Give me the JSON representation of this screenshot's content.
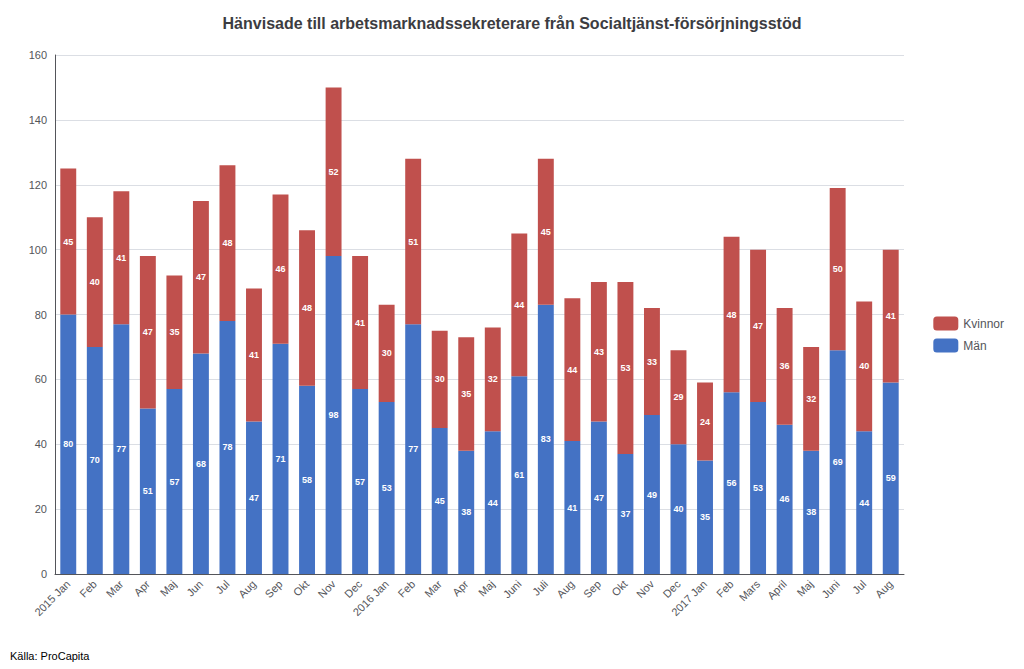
{
  "chart_data": {
    "type": "bar",
    "title": "Hänvisade till arbetsmarknadssekreterare från Socialtjänst-försörjningsstöd",
    "annotations": [
      "Källa: ProCapita"
    ],
    "categories": [
      "2015 Jan",
      "Feb",
      "Mar",
      "Apr",
      "Maj",
      "Jun",
      "Jul",
      "Aug",
      "Sep",
      "Okt",
      "Nov",
      "Dec",
      "2016 Jan",
      "Feb",
      "Mar",
      "Apr",
      "Maj",
      "Juni",
      "Juli",
      "Aug",
      "Sep",
      "Okt",
      "Nov",
      "Dec",
      "2017 Jan",
      "Feb",
      "Mars",
      "April",
      "Maj",
      "Juni",
      "Jul",
      "Aug"
    ],
    "series": [
      {
        "name": "Män",
        "color": "#4472C4",
        "values": [
          80,
          70,
          77,
          51,
          57,
          68,
          78,
          47,
          71,
          58,
          98,
          57,
          53,
          77,
          45,
          38,
          44,
          61,
          83,
          41,
          47,
          37,
          49,
          40,
          35,
          56,
          53,
          46,
          38,
          69,
          44,
          59
        ]
      },
      {
        "name": "Kvinnor",
        "color": "#C0504D",
        "values": [
          45,
          40,
          41,
          47,
          35,
          47,
          48,
          41,
          46,
          48,
          52,
          41,
          30,
          51,
          30,
          35,
          32,
          44,
          45,
          44,
          43,
          53,
          33,
          29,
          24,
          48,
          47,
          36,
          32,
          50,
          40,
          41
        ]
      }
    ],
    "stacked": true,
    "data_labels": true,
    "ylim": [
      0,
      160
    ],
    "yticks": [
      0,
      20,
      40,
      60,
      80,
      100,
      120,
      140,
      160
    ],
    "grid": true,
    "legend": "right"
  }
}
